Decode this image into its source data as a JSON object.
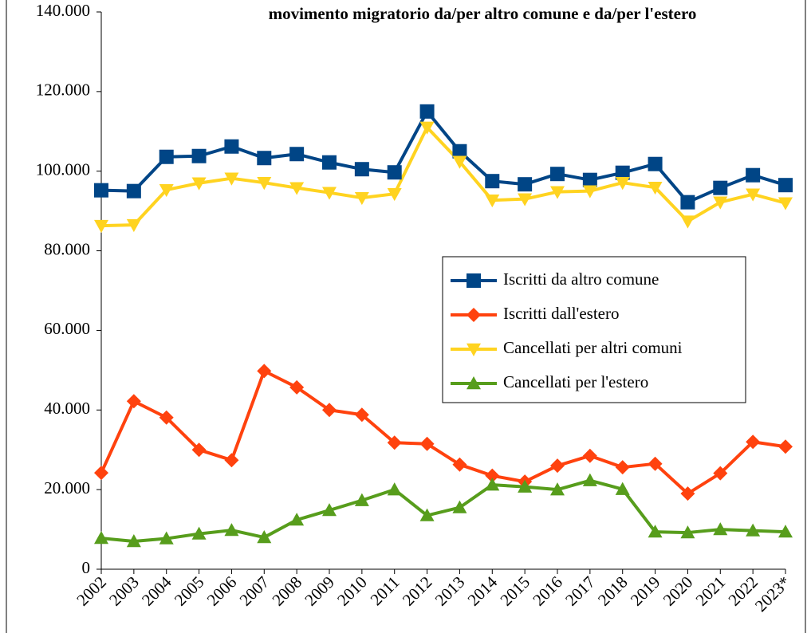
{
  "chart_data": {
    "type": "line",
    "title": "movimento migratorio da/per altro comune e da/per l'estero",
    "categories": [
      "2002",
      "2003",
      "2004",
      "2005",
      "2006",
      "2007",
      "2008",
      "2009",
      "2010",
      "2011",
      "2012",
      "2013",
      "2014",
      "2015",
      "2016",
      "2017",
      "2018",
      "2019",
      "2020",
      "2021",
      "2022",
      "2023*"
    ],
    "series": [
      {
        "name": "Iscritti da altro comune",
        "color": "#004586",
        "marker": "square",
        "values": [
          95200,
          95000,
          103600,
          103800,
          106200,
          103300,
          104300,
          102200,
          100500,
          99700,
          115000,
          105000,
          97500,
          96700,
          99300,
          97800,
          99600,
          101800,
          92200,
          95800,
          99000,
          96500
        ]
      },
      {
        "name": "Iscritti dall'estero",
        "color": "#ff420e",
        "marker": "diamond",
        "values": [
          24200,
          42200,
          38100,
          30000,
          27400,
          49800,
          45700,
          40000,
          38800,
          31800,
          31500,
          26300,
          23500,
          22000,
          26000,
          28500,
          25600,
          26500,
          19000,
          24100,
          32000,
          30800
        ]
      },
      {
        "name": "Cancellati per altri comuni",
        "color": "#ffd320",
        "marker": "triangle-down",
        "values": [
          86300,
          86500,
          95300,
          97000,
          98200,
          97100,
          95800,
          94600,
          93300,
          94300,
          111000,
          102400,
          92700,
          93000,
          94800,
          95000,
          97100,
          95900,
          87400,
          92200,
          94200,
          92000
        ]
      },
      {
        "name": "Cancellati per l'estero",
        "color": "#579d1c",
        "marker": "triangle-up",
        "values": [
          7800,
          7000,
          7700,
          8900,
          9800,
          8000,
          12400,
          14800,
          17300,
          20000,
          13500,
          15500,
          21200,
          20700,
          20000,
          22300,
          20100,
          9400,
          9200,
          10000,
          9700,
          9400
        ]
      }
    ],
    "ylim": [
      0,
      140000
    ],
    "yticks": [
      0,
      {
        "value": 20000,
        "label": "20.000"
      },
      {
        "value": 40000,
        "label": "40.000"
      },
      {
        "value": 60000,
        "label": "60.000"
      },
      {
        "value": 80000,
        "label": "80.000"
      },
      {
        "value": 100000,
        "label": "100.000"
      },
      {
        "value": 120000,
        "label": "120.000"
      },
      {
        "value": 140000,
        "label": "140.000"
      }
    ],
    "grid": false,
    "legend": "right"
  }
}
